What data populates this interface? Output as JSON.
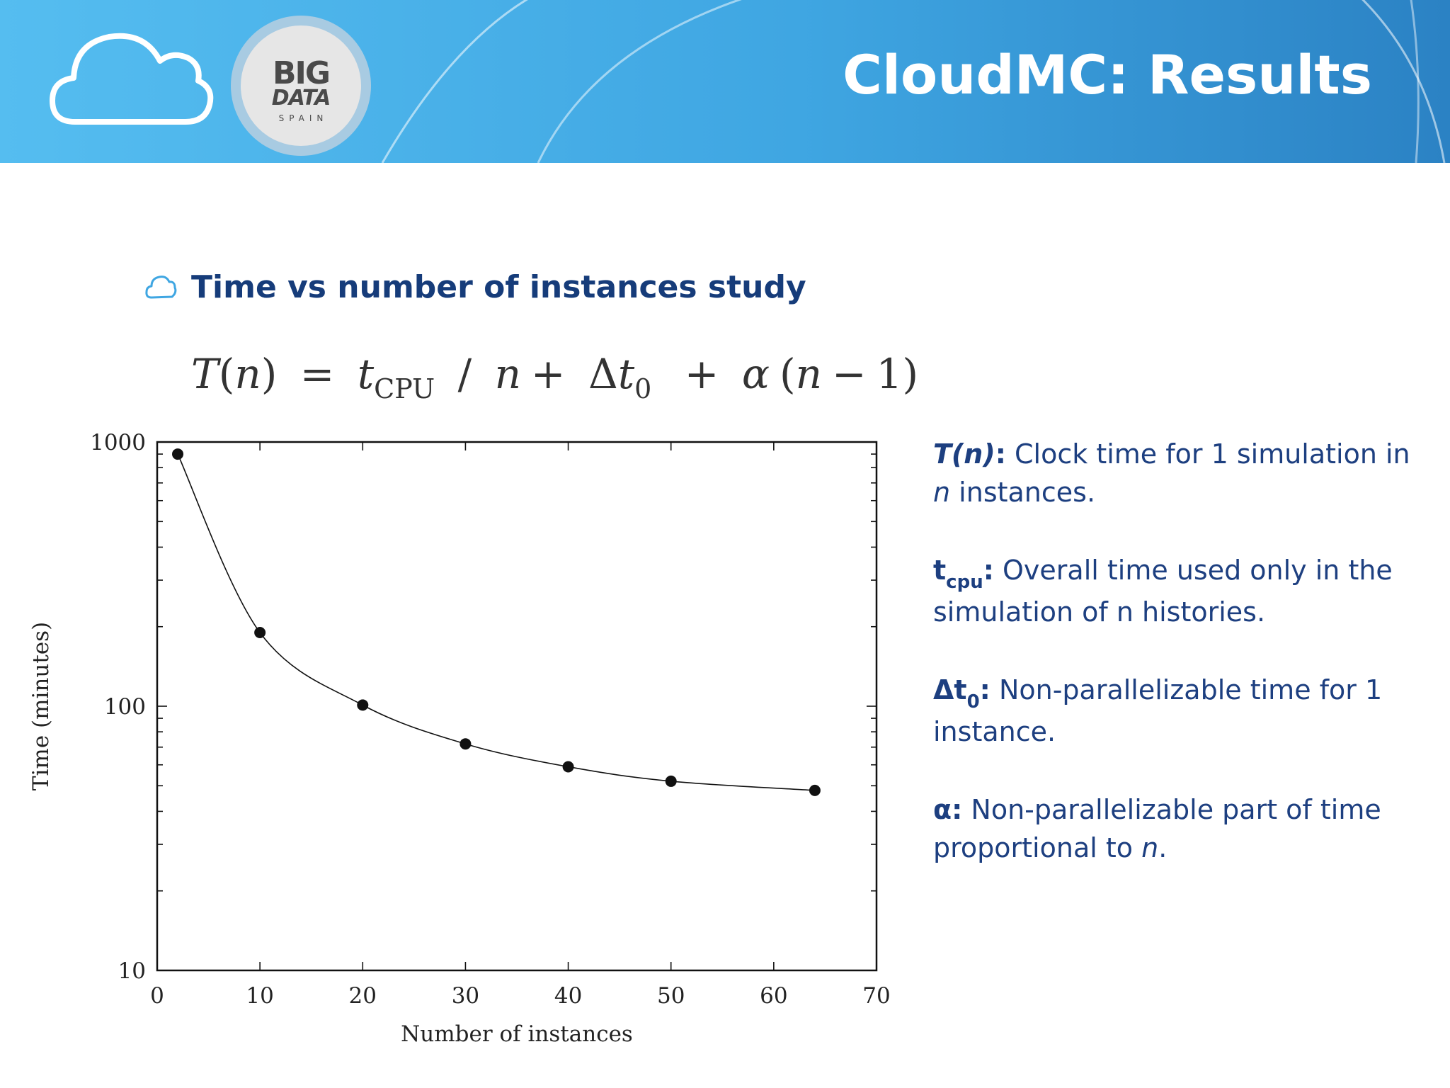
{
  "header": {
    "title": "CloudMC: Results",
    "logo": {
      "big": "BIG",
      "data": "DATA",
      "spain": "SPAIN"
    },
    "cloud_icon": "cloud-outline-icon"
  },
  "bullet": {
    "icon": "cloud-bullet-icon",
    "text": "Time vs number of instances study"
  },
  "formula": {
    "lhs_T": "T",
    "lhs_n": "n",
    "t": "t",
    "cpu": "CPU",
    "n1": "n",
    "delta": "Δ",
    "t0": "t",
    "zero": "0",
    "alpha": "α",
    "n2": "n",
    "one": "1"
  },
  "chart_data": {
    "type": "scatter",
    "xlabel": "Number of instances",
    "ylabel": "Time (minutes)",
    "xlim": [
      0,
      70
    ],
    "ylim": [
      10,
      1000
    ],
    "yscale": "log",
    "xticks": [
      0,
      10,
      20,
      30,
      40,
      50,
      60,
      70
    ],
    "yticks": [
      10,
      100,
      1000
    ],
    "grid": false,
    "series": [
      {
        "x": [
          2,
          10,
          20,
          30,
          40,
          50,
          64
        ],
        "values": [
          900,
          190,
          101,
          72,
          59,
          52,
          48
        ]
      }
    ],
    "fit_curve": true
  },
  "definitions": [
    {
      "term": "T(n)",
      "sep": ":",
      "line1": " Clock time for 1 simulation in",
      "line2a": "n",
      "line2b": " instances."
    },
    {
      "term": "t",
      "sub": "cpu",
      "sep": ":",
      "line1": " Overall time used only in the",
      "line2": "simulation of n histories."
    },
    {
      "term": "Δt",
      "sub": "0",
      "sep": ":",
      "line1": " Non-parallelizable time for 1",
      "line2": "instance."
    },
    {
      "term": "α",
      "sep": ":",
      "line1": " Non-parallelizable part of time",
      "line2a": "proportional to ",
      "line2b": "n",
      "line2c": "."
    }
  ],
  "colors": {
    "header_start": "#55bdf0",
    "header_end": "#2b82c4",
    "text_blue": "#1d3f80",
    "title_blue": "#163c7a"
  }
}
